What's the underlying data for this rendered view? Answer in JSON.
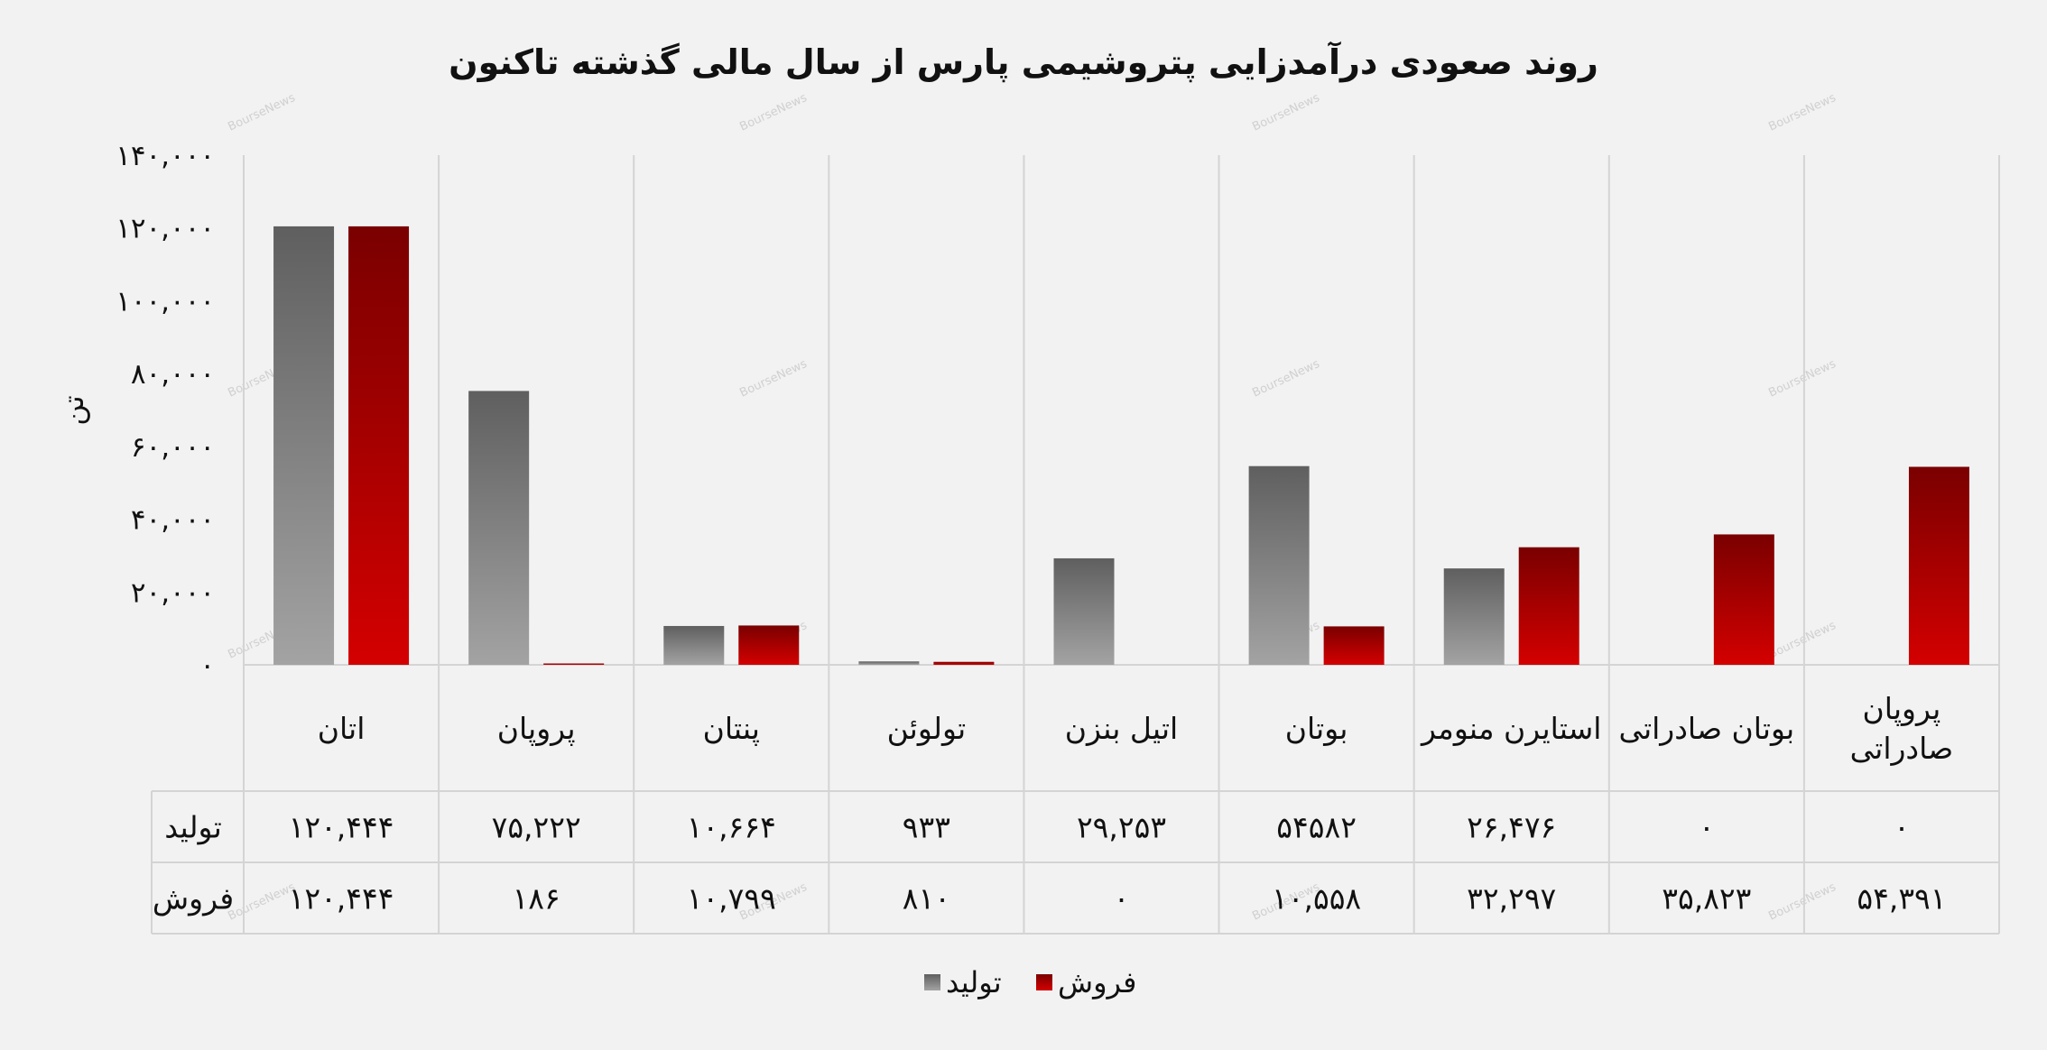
{
  "chart_data": {
    "type": "bar",
    "title": "روند صعودی درآمدزایی پتروشیمی پارس از سال مالی گذشته تاکنون",
    "ylabel": "تن",
    "ylim": [
      0,
      140000
    ],
    "yticks": [
      0,
      20000,
      40000,
      60000,
      80000,
      100000,
      120000,
      140000
    ],
    "ytick_labels": [
      "۰",
      "۲۰,۰۰۰",
      "۴۰,۰۰۰",
      "۶۰,۰۰۰",
      "۸۰,۰۰۰",
      "۱۰۰,۰۰۰",
      "۱۲۰,۰۰۰",
      "۱۴۰,۰۰۰"
    ],
    "categories": [
      [
        "اتان"
      ],
      [
        "پروپان"
      ],
      [
        "پنتان"
      ],
      [
        "تولوئن"
      ],
      [
        "اتیل بنزن"
      ],
      [
        "بوتان"
      ],
      [
        "استایرن منومر"
      ],
      [
        "بوتان صادراتی"
      ],
      [
        "پروپان",
        "صادراتی"
      ]
    ],
    "series": [
      {
        "name": "تولید",
        "color_top": "#5f5f5f",
        "color_bottom": "#a3a3a3",
        "values": [
          120444,
          75222,
          10664,
          933,
          29253,
          54582,
          26476,
          0,
          0
        ],
        "value_labels": [
          "۱۲۰,۴۴۴",
          "۷۵,۲۲۲",
          "۱۰,۶۶۴",
          "۹۳۳",
          "۲۹,۲۵۳",
          "۵۴۵۸۲",
          "۲۶,۴۷۶",
          "۰",
          "۰"
        ]
      },
      {
        "name": "فروش",
        "color_top": "#7a0000",
        "color_bottom": "#d40000",
        "values": [
          120444,
          186,
          10799,
          810,
          0,
          10558,
          32297,
          35823,
          54391
        ],
        "value_labels": [
          "۱۲۰,۴۴۴",
          "۱۸۶",
          "۱۰,۷۹۹",
          "۸۱۰",
          "۰",
          "۱۰,۵۵۸",
          "۳۲,۲۹۷",
          "۳۵,۸۲۳",
          "۵۴,۳۹۱"
        ]
      }
    ],
    "legend": {
      "placement": "bottom"
    },
    "grid": {
      "vertical": true,
      "horizontal": false
    },
    "data_table": true,
    "watermark": "BourseNews"
  }
}
